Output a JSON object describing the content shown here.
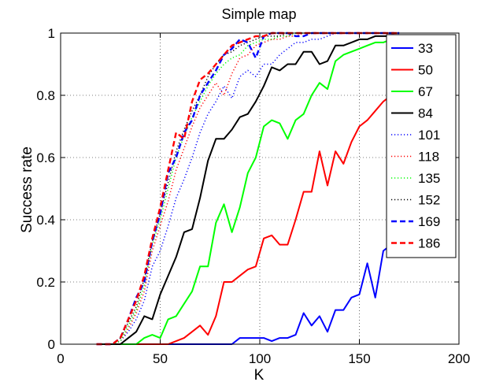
{
  "chart_data": {
    "type": "line",
    "title": "Simple map",
    "xlabel": "K",
    "ylabel": "Success rate",
    "xlim": [
      0,
      200
    ],
    "ylim": [
      0,
      1
    ],
    "xticks": [
      "0",
      "50",
      "100",
      "150",
      "200"
    ],
    "yticks": [
      "0",
      "0.2",
      "0.4",
      "0.6",
      "0.8",
      "1"
    ],
    "grid": true,
    "legend_position": "right",
    "series": [
      {
        "name": "33",
        "color": "#0000ff",
        "dash": "solid",
        "x": [
          18,
          22,
          26,
          30,
          34,
          38,
          42,
          46,
          50,
          54,
          58,
          62,
          66,
          70,
          74,
          78,
          82,
          86,
          90,
          94,
          98,
          102,
          106,
          110,
          114,
          118,
          122,
          126,
          130,
          134,
          138,
          142,
          146,
          150,
          154,
          158,
          162,
          166,
          170
        ],
        "y": [
          0,
          0,
          0,
          0,
          0,
          0,
          0,
          0,
          0,
          0,
          0,
          0,
          0,
          0,
          0,
          0,
          0,
          0,
          0.02,
          0.02,
          0.02,
          0.02,
          0.01,
          0.02,
          0.02,
          0.03,
          0.1,
          0.06,
          0.09,
          0.04,
          0.11,
          0.11,
          0.15,
          0.16,
          0.26,
          0.15,
          0.3,
          0.32,
          0.33
        ]
      },
      {
        "name": "50",
        "color": "#ff0000",
        "dash": "solid",
        "x": [
          18,
          22,
          26,
          30,
          34,
          38,
          42,
          46,
          50,
          54,
          58,
          62,
          66,
          70,
          74,
          78,
          82,
          86,
          90,
          94,
          98,
          102,
          106,
          110,
          114,
          118,
          122,
          126,
          130,
          134,
          138,
          142,
          146,
          150,
          154,
          158,
          162,
          166,
          170
        ],
        "y": [
          0,
          0,
          0,
          0,
          0,
          0,
          0,
          0,
          0,
          0,
          0.01,
          0.02,
          0.04,
          0.06,
          0.03,
          0.09,
          0.2,
          0.2,
          0.22,
          0.24,
          0.25,
          0.34,
          0.35,
          0.32,
          0.32,
          0.4,
          0.49,
          0.49,
          0.62,
          0.51,
          0.62,
          0.58,
          0.65,
          0.7,
          0.72,
          0.75,
          0.78,
          0.8,
          0.82
        ]
      },
      {
        "name": "67",
        "color": "#00ff00",
        "dash": "solid",
        "x": [
          18,
          22,
          26,
          30,
          34,
          38,
          42,
          46,
          50,
          54,
          58,
          62,
          66,
          70,
          74,
          78,
          82,
          86,
          90,
          94,
          98,
          102,
          106,
          110,
          114,
          118,
          122,
          126,
          130,
          134,
          138,
          142,
          146,
          150,
          154,
          158,
          162,
          166,
          170
        ],
        "y": [
          0,
          0,
          0,
          0,
          0,
          0,
          0.02,
          0.03,
          0.02,
          0.08,
          0.09,
          0.13,
          0.17,
          0.25,
          0.25,
          0.39,
          0.45,
          0.36,
          0.44,
          0.55,
          0.6,
          0.7,
          0.72,
          0.71,
          0.66,
          0.72,
          0.74,
          0.8,
          0.84,
          0.82,
          0.91,
          0.93,
          0.94,
          0.95,
          0.96,
          0.97,
          0.97,
          0.98,
          0.98
        ]
      },
      {
        "name": "84",
        "color": "#000000",
        "dash": "solid",
        "x": [
          18,
          22,
          26,
          30,
          34,
          38,
          42,
          46,
          50,
          54,
          58,
          62,
          66,
          70,
          74,
          78,
          82,
          86,
          90,
          94,
          98,
          102,
          106,
          110,
          114,
          118,
          122,
          126,
          130,
          134,
          138,
          142,
          146,
          150,
          154,
          158,
          162,
          166,
          170
        ],
        "y": [
          0,
          0,
          0,
          0,
          0.02,
          0.04,
          0.09,
          0.08,
          0.16,
          0.22,
          0.28,
          0.36,
          0.37,
          0.47,
          0.59,
          0.66,
          0.66,
          0.69,
          0.73,
          0.74,
          0.78,
          0.83,
          0.89,
          0.88,
          0.9,
          0.9,
          0.94,
          0.94,
          0.9,
          0.91,
          0.96,
          0.96,
          0.97,
          0.98,
          0.98,
          0.99,
          0.99,
          0.99,
          0.99
        ]
      },
      {
        "name": "101",
        "color": "#0000ff",
        "dash": "dotted",
        "x": [
          18,
          22,
          26,
          30,
          34,
          38,
          42,
          46,
          50,
          54,
          58,
          62,
          66,
          70,
          74,
          78,
          82,
          86,
          90,
          94,
          98,
          102,
          106,
          110,
          114,
          118,
          122,
          126,
          130,
          134,
          138,
          142,
          146,
          150,
          154,
          158,
          162,
          166,
          170
        ],
        "y": [
          0,
          0,
          0,
          0.01,
          0.04,
          0.08,
          0.14,
          0.25,
          0.3,
          0.38,
          0.47,
          0.53,
          0.6,
          0.68,
          0.74,
          0.78,
          0.83,
          0.79,
          0.86,
          0.88,
          0.86,
          0.9,
          0.9,
          0.93,
          0.95,
          0.97,
          0.97,
          0.98,
          0.98,
          0.99,
          1,
          1,
          1,
          1,
          1,
          1,
          1,
          1,
          1
        ]
      },
      {
        "name": "118",
        "color": "#ff0000",
        "dash": "dotted",
        "x": [
          18,
          22,
          26,
          30,
          34,
          38,
          42,
          46,
          50,
          54,
          58,
          62,
          66,
          70,
          74,
          78,
          82,
          86,
          90,
          94,
          98,
          102,
          106,
          110,
          114,
          118,
          122,
          126,
          130,
          134,
          138,
          142,
          146,
          150,
          154,
          158,
          162,
          166,
          170
        ],
        "y": [
          0,
          0,
          0,
          0.01,
          0.05,
          0.1,
          0.17,
          0.3,
          0.38,
          0.46,
          0.56,
          0.63,
          0.7,
          0.76,
          0.8,
          0.84,
          0.8,
          0.87,
          0.92,
          0.93,
          0.96,
          0.97,
          0.98,
          0.98,
          0.99,
          0.99,
          1,
          1,
          1,
          1,
          1,
          1,
          1,
          1,
          1,
          1,
          1,
          1,
          1
        ]
      },
      {
        "name": "135",
        "color": "#00ff00",
        "dash": "dotted",
        "x": [
          18,
          22,
          26,
          30,
          34,
          38,
          42,
          46,
          50,
          54,
          58,
          62,
          66,
          70,
          74,
          78,
          82,
          86,
          90,
          94,
          98,
          102,
          106,
          110,
          114,
          118,
          122,
          126,
          130,
          134,
          138,
          142,
          146,
          150,
          154,
          158,
          162,
          166,
          170
        ],
        "y": [
          0,
          0,
          0,
          0.01,
          0.06,
          0.11,
          0.19,
          0.32,
          0.4,
          0.5,
          0.6,
          0.67,
          0.73,
          0.78,
          0.83,
          0.87,
          0.9,
          0.92,
          0.93,
          0.96,
          0.97,
          0.98,
          0.98,
          0.99,
          0.99,
          1,
          1,
          1,
          1,
          1,
          1,
          1,
          1,
          1,
          1,
          1,
          1,
          1,
          1
        ]
      },
      {
        "name": "152",
        "color": "#000000",
        "dash": "dotted",
        "x": [
          18,
          22,
          26,
          30,
          34,
          38,
          42,
          46,
          50,
          54,
          58,
          62,
          66,
          70,
          74,
          78,
          82,
          86,
          90,
          94,
          98,
          102,
          106,
          110,
          114,
          118,
          122,
          126,
          130,
          134,
          138,
          142,
          146,
          150,
          154,
          158,
          162,
          166,
          170
        ],
        "y": [
          0,
          0,
          0,
          0.02,
          0.07,
          0.12,
          0.21,
          0.33,
          0.42,
          0.52,
          0.62,
          0.69,
          0.75,
          0.8,
          0.86,
          0.9,
          0.93,
          0.94,
          0.96,
          0.97,
          0.98,
          0.99,
          0.99,
          0.99,
          1,
          1,
          1,
          1,
          1,
          1,
          1,
          1,
          1,
          1,
          1,
          1,
          1,
          1,
          1
        ]
      },
      {
        "name": "169",
        "color": "#0000ff",
        "dash": "dashed",
        "x": [
          18,
          22,
          26,
          30,
          34,
          38,
          42,
          46,
          50,
          54,
          58,
          62,
          66,
          70,
          74,
          78,
          82,
          86,
          90,
          94,
          98,
          102,
          106,
          110,
          114,
          118,
          122,
          126,
          130,
          134,
          138,
          142,
          146,
          150,
          154,
          158,
          162,
          166,
          170
        ],
        "y": [
          0,
          0,
          0,
          0.02,
          0.08,
          0.15,
          0.2,
          0.33,
          0.42,
          0.55,
          0.6,
          0.68,
          0.72,
          0.8,
          0.84,
          0.88,
          0.93,
          0.95,
          0.98,
          0.97,
          0.92,
          0.99,
          1,
          1,
          1,
          0.99,
          0.99,
          1,
          1,
          1,
          1,
          1,
          1,
          1,
          1,
          1,
          1,
          1,
          1
        ]
      },
      {
        "name": "186",
        "color": "#ff0000",
        "dash": "dashed",
        "x": [
          18,
          22,
          26,
          30,
          34,
          38,
          42,
          46,
          50,
          54,
          58,
          62,
          66,
          70,
          74,
          78,
          82,
          86,
          90,
          94,
          98,
          102,
          106,
          110,
          114,
          118,
          122,
          126,
          130,
          134,
          138,
          142,
          146,
          150,
          154,
          158,
          162,
          166,
          170
        ],
        "y": [
          0,
          0,
          0,
          0.02,
          0.08,
          0.14,
          0.22,
          0.34,
          0.44,
          0.56,
          0.68,
          0.66,
          0.78,
          0.85,
          0.87,
          0.9,
          0.93,
          0.96,
          0.97,
          0.98,
          0.99,
          0.99,
          1,
          1,
          1,
          1,
          1,
          1,
          1,
          1,
          1,
          1,
          1,
          1,
          1,
          1,
          1,
          1,
          1
        ]
      }
    ]
  }
}
